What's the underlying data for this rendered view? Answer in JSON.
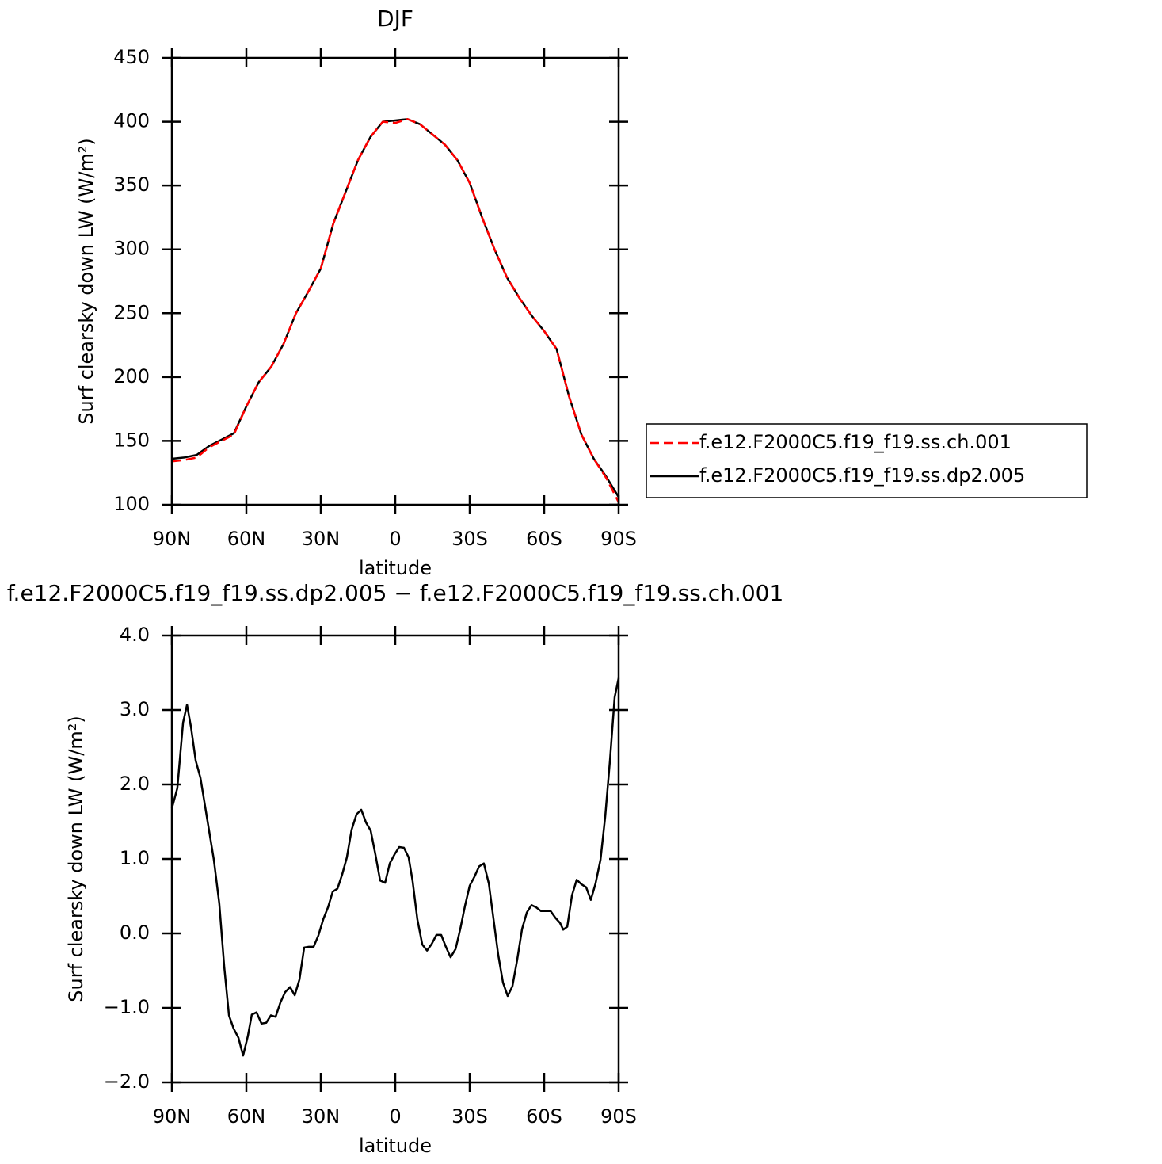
{
  "chart_data": [
    {
      "type": "line",
      "title": "DJF",
      "xlabel": "latitude",
      "ylabel": "Surf clearsky down LW (W/m²)",
      "x": [
        90,
        85,
        80,
        75,
        70,
        65,
        60,
        55,
        50,
        45,
        40,
        35,
        30,
        25,
        20,
        15,
        10,
        5,
        0,
        -5,
        -10,
        -15,
        -20,
        -25,
        -30,
        -35,
        -40,
        -45,
        -50,
        -55,
        -60,
        -65,
        -70,
        -75,
        -80,
        -85,
        -90
      ],
      "series": [
        {
          "name": "f.e12.F2000C5.f19_f19.ss.ch.001",
          "color": "#ff0000",
          "linestyle": "dashed",
          "values": [
            134,
            135,
            137,
            145,
            150,
            155,
            177,
            196,
            208,
            226,
            250,
            267,
            285,
            320,
            345,
            370,
            388,
            400,
            399,
            402,
            398,
            390,
            382,
            370,
            352,
            325,
            300,
            278,
            262,
            248,
            236,
            222,
            185,
            155,
            136,
            121,
            102
          ]
        },
        {
          "name": "f.e12.F2000C5.f19_f19.ss.dp2.005",
          "color": "#000000",
          "linestyle": "solid",
          "values": [
            136,
            137,
            139,
            146,
            151,
            156,
            177,
            196,
            208,
            226,
            250,
            267,
            285,
            320,
            345,
            370,
            388,
            400,
            401,
            402,
            398,
            390,
            382,
            370,
            352,
            325,
            300,
            278,
            262,
            248,
            236,
            222,
            185,
            155,
            136,
            122,
            106
          ]
        }
      ],
      "xlim": [
        90,
        -90
      ],
      "xticks": [
        {
          "value": 90,
          "label": "90N"
        },
        {
          "value": 60,
          "label": "60N"
        },
        {
          "value": 30,
          "label": "30N"
        },
        0,
        {
          "value": -30,
          "label": "30S"
        },
        {
          "value": -60,
          "label": "60S"
        },
        {
          "value": -90,
          "label": "90S"
        }
      ],
      "ylim": [
        100,
        450
      ],
      "yticks": [
        100,
        150,
        200,
        250,
        300,
        350,
        400,
        450
      ],
      "legend": "right"
    },
    {
      "type": "line",
      "title": "f.e12.F2000C5.f19_f19.ss.dp2.005 − f.e12.F2000C5.f19_f19.ss.ch.001",
      "xlabel": "latitude",
      "ylabel": "Surf clearsky down LW (W/m²)",
      "x": [
        90,
        87.8,
        85.5,
        83.9,
        82.3,
        80.4,
        78.5,
        75.6,
        73.1,
        70.9,
        68.9,
        67.0,
        65.1,
        63.2,
        61.3,
        59.4,
        57.8,
        55.9,
        53.9,
        52.0,
        50.1,
        48.2,
        46.3,
        44.4,
        42.4,
        40.5,
        38.6,
        36.7,
        34.8,
        32.9,
        31.0,
        29.0,
        27.1,
        25.2,
        23.3,
        21.4,
        19.5,
        17.6,
        15.6,
        13.7,
        11.8,
        9.9,
        8.0,
        6.1,
        4.1,
        2.2,
        0.3,
        -1.6,
        -3.5,
        -5.4,
        -7.0,
        -8.9,
        -10.9,
        -12.8,
        -14.7,
        -16.6,
        -18.5,
        -20.4,
        -22.3,
        -24.3,
        -26.2,
        -28.1,
        -30.0,
        -31.9,
        -33.8,
        -35.7,
        -37.7,
        -39.6,
        -41.5,
        -43.4,
        -45.3,
        -47.2,
        -49.1,
        -51.1,
        -53.0,
        -54.9,
        -56.8,
        -58.7,
        -60.6,
        -62.6,
        -64.5,
        -66.4,
        -67.7,
        -69.3,
        -71.2,
        -73.1,
        -75.0,
        -76.9,
        -78.8,
        -80.7,
        -82.7,
        -84.6,
        -86.5,
        -88.4,
        -90
      ],
      "values": [
        1.68,
        1.95,
        2.83,
        3.07,
        2.77,
        2.32,
        2.09,
        1.5,
        0.99,
        0.4,
        -0.45,
        -1.1,
        -1.28,
        -1.4,
        -1.64,
        -1.38,
        -1.09,
        -1.06,
        -1.21,
        -1.2,
        -1.1,
        -1.12,
        -0.93,
        -0.79,
        -0.72,
        -0.83,
        -0.62,
        -0.19,
        -0.18,
        -0.18,
        -0.03,
        0.19,
        0.35,
        0.56,
        0.6,
        0.79,
        1.02,
        1.39,
        1.6,
        1.66,
        1.49,
        1.38,
        1.06,
        0.71,
        0.68,
        0.94,
        1.06,
        1.16,
        1.15,
        1.02,
        0.7,
        0.19,
        -0.15,
        -0.23,
        -0.14,
        -0.02,
        -0.02,
        -0.18,
        -0.32,
        -0.21,
        0.06,
        0.37,
        0.64,
        0.76,
        0.9,
        0.94,
        0.67,
        0.19,
        -0.29,
        -0.66,
        -0.84,
        -0.71,
        -0.36,
        0.06,
        0.28,
        0.38,
        0.35,
        0.3,
        0.3,
        0.3,
        0.21,
        0.14,
        0.05,
        0.09,
        0.51,
        0.72,
        0.66,
        0.62,
        0.45,
        0.67,
        0.99,
        1.57,
        2.32,
        3.17,
        3.43
      ],
      "color": "#000000",
      "xlim": [
        90,
        -90
      ],
      "xticks": [
        {
          "value": 90,
          "label": "90N"
        },
        {
          "value": 60,
          "label": "60N"
        },
        {
          "value": 30,
          "label": "30N"
        },
        0,
        {
          "value": -30,
          "label": "30S"
        },
        {
          "value": -60,
          "label": "60S"
        },
        {
          "value": -90,
          "label": "90S"
        }
      ],
      "ylim": [
        -2,
        4
      ],
      "yticks": [
        {
          "value": -2,
          "label": "−2.0"
        },
        {
          "value": -1,
          "label": "−1.0"
        },
        {
          "value": 0,
          "label": "0.0"
        },
        {
          "value": 1,
          "label": "1.0"
        },
        {
          "value": 2,
          "label": "2.0"
        },
        {
          "value": 3,
          "label": "3.0"
        },
        {
          "value": 4,
          "label": "4.0"
        }
      ]
    }
  ]
}
